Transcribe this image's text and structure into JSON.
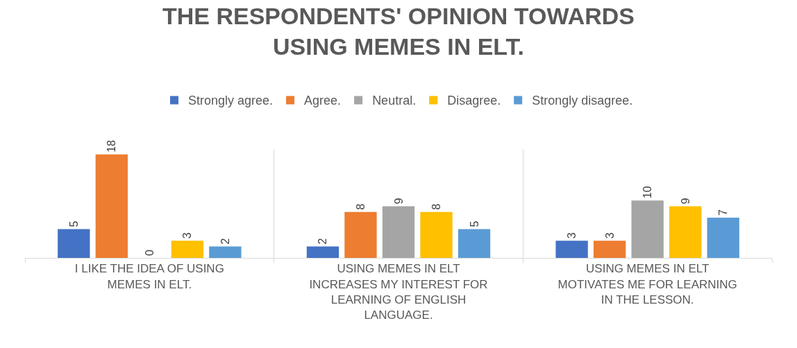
{
  "chart_data": {
    "type": "bar",
    "title": "THE RESPONDENTS' OPINION TOWARDS USING MEMES IN ELT.",
    "categories": [
      "I LIKE THE IDEA OF USING MEMES IN ELT.",
      "USING MEMES IN ELT INCREASES MY INTEREST FOR LEARNING OF ENGLISH LANGUAGE.",
      "USING MEMES IN ELT MOTIVATES ME FOR LEARNING IN THE LESSON."
    ],
    "series": [
      {
        "name": "Strongly agree.",
        "color": "#4472c4",
        "values": [
          5,
          2,
          3
        ]
      },
      {
        "name": "Agree.",
        "color": "#ed7d31",
        "values": [
          18,
          8,
          3
        ]
      },
      {
        "name": "Neutral.",
        "color": "#a5a5a5",
        "values": [
          0,
          9,
          10
        ]
      },
      {
        "name": "Disagree.",
        "color": "#ffc000",
        "values": [
          3,
          8,
          9
        ]
      },
      {
        "name": "Strongly disagree.",
        "color": "#5b9bd5",
        "values": [
          2,
          5,
          7
        ]
      }
    ],
    "data_labels": true,
    "grid": "x",
    "legend": "top"
  }
}
